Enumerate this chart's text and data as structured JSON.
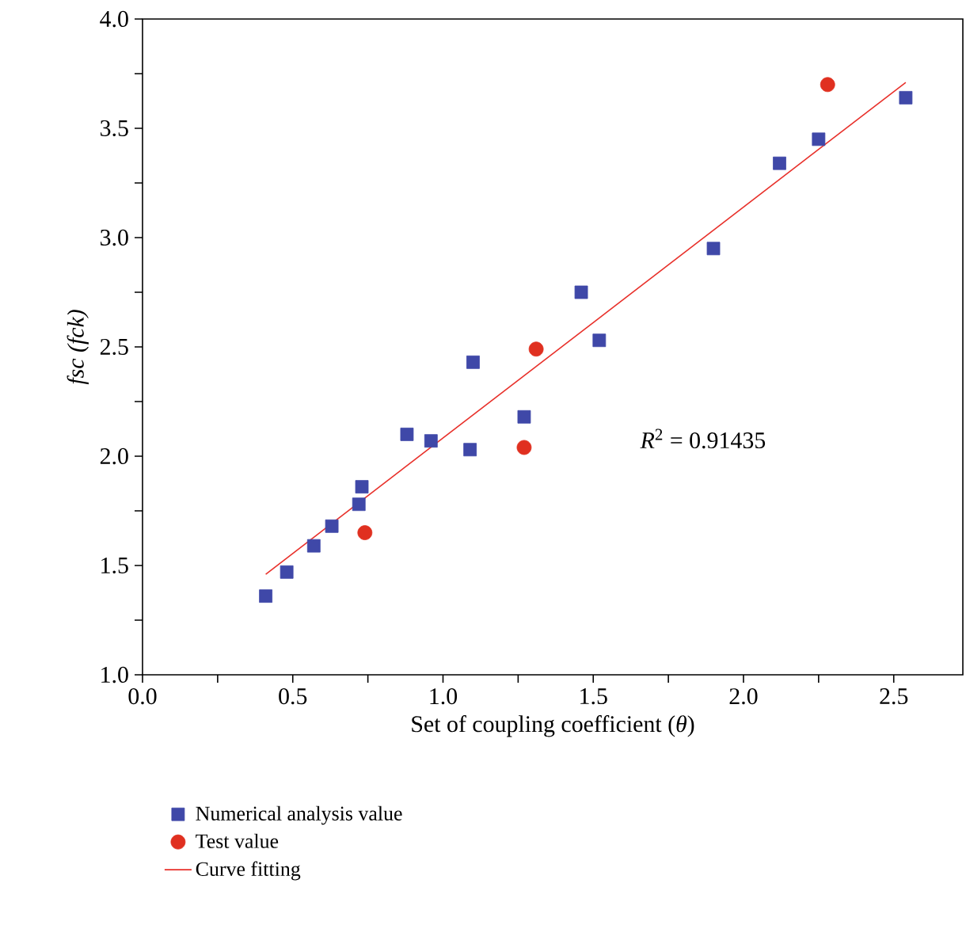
{
  "chart_data": {
    "type": "scatter",
    "xlabel": "Set of coupling coefficient (*θ*)",
    "ylabel": "fsc (fck)",
    "xlim": [
      0,
      2.73
    ],
    "ylim": [
      1.0,
      4.0
    ],
    "xticks": [
      {
        "value": 0,
        "label": "0.0"
      },
      {
        "value": 0.25,
        "label": null
      },
      0.5,
      {
        "value": 0.75,
        "label": null
      },
      {
        "value": 1,
        "label": "1.0"
      },
      {
        "value": 1.25,
        "label": null
      },
      1.5,
      {
        "value": 1.75,
        "label": null
      },
      {
        "value": 2,
        "label": "2.0"
      },
      {
        "value": 2.25,
        "label": null
      },
      2.5
    ],
    "yticks": [
      {
        "value": 1,
        "label": "1.0"
      },
      {
        "value": 1.25,
        "label": null
      },
      1.5,
      {
        "value": 1.75,
        "label": null
      },
      {
        "value": 2,
        "label": "2.0"
      },
      {
        "value": 2.25,
        "label": null
      },
      2.5,
      {
        "value": 2.75,
        "label": null
      },
      {
        "value": 3,
        "label": "3.0"
      },
      {
        "value": 3.25,
        "label": null
      },
      3.5,
      {
        "value": 3.75,
        "label": null
      },
      {
        "value": 4,
        "label": "4.0"
      }
    ],
    "legend": "bottom left",
    "grid": false,
    "annotations": [
      "*R*$^{2}$ = 0.91435"
    ],
    "series": [
      {
        "name": "Numerical analysis value",
        "marker": "square",
        "color": "#3f48a8",
        "x": [
          0.41,
          0.48,
          0.57,
          0.63,
          0.72,
          0.73,
          0.88,
          0.96,
          1.09,
          1.1,
          1.27,
          1.46,
          1.52,
          1.9,
          2.12,
          2.25,
          2.54
        ],
        "values": [
          1.36,
          1.47,
          1.59,
          1.68,
          1.78,
          1.86,
          2.1,
          2.07,
          2.03,
          2.43,
          2.18,
          2.75,
          2.53,
          2.95,
          3.34,
          3.45,
          3.64
        ]
      },
      {
        "name": "Test value",
        "marker": "circle",
        "color": "#e03020",
        "x": [
          0.74,
          1.27,
          1.31,
          2.28
        ],
        "values": [
          1.65,
          2.04,
          2.49,
          3.7
        ]
      },
      {
        "name": "Curve fitting",
        "type": "line",
        "marker": "none",
        "line_style": "solid",
        "color": "#e8302a",
        "x": [
          0.41,
          2.54
        ],
        "values": [
          1.46,
          3.71
        ]
      }
    ]
  }
}
